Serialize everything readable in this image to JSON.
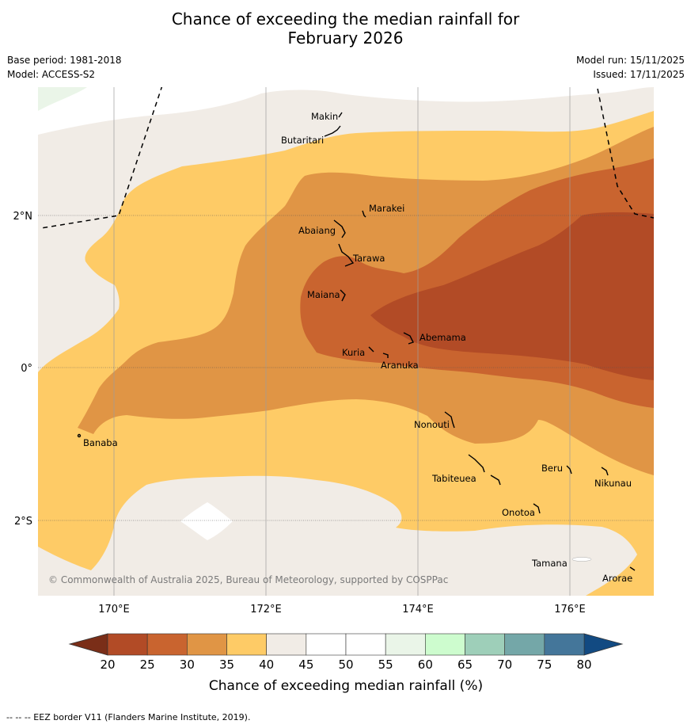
{
  "title": {
    "line1": "Chance of exceeding the median rainfall for",
    "line2": "February 2026"
  },
  "meta_left": {
    "base_period": "Base period: 1981-2018",
    "model": "Model: ACCESS-S2"
  },
  "meta_right": {
    "model_run": "Model run: 15/11/2025",
    "issued": "Issued: 17/11/2025"
  },
  "map": {
    "lat_labels": [
      "2°N",
      "0°",
      "2°S"
    ],
    "lon_labels": [
      "170°E",
      "172°E",
      "174°E",
      "176°E"
    ],
    "places": [
      "Makin",
      "Butaritari",
      "Marakei",
      "Abaiang",
      "Tarawa",
      "Maiana",
      "Abemama",
      "Kuria",
      "Aranuka",
      "Nonouti",
      "Banaba",
      "Beru",
      "Nikunau",
      "Tabiteuea",
      "Onotoa",
      "Tamana",
      "Arorae"
    ],
    "copyright": "© Commonwealth of Australia 2025, Bureau of Meteorology, supported by COSPPac"
  },
  "legend": {
    "ticks": [
      "20",
      "25",
      "30",
      "35",
      "40",
      "45",
      "50",
      "55",
      "60",
      "65",
      "70",
      "75",
      "80"
    ],
    "colors": [
      "#b24b26",
      "#c9642f",
      "#e09545",
      "#fecb66",
      "#f1ece6",
      "#ffffff",
      "#ffffff",
      "#eaf5e8",
      "#cdfcce",
      "#9ecfb9",
      "#74a7a8",
      "#44769a"
    ],
    "low_color": "#7a2e18",
    "high_color": "#124a82",
    "label": "Chance of exceeding median rainfall (%)"
  },
  "footer": "--  --  -- EEZ border V11 (Flanders Marine Institute, 2019)."
}
